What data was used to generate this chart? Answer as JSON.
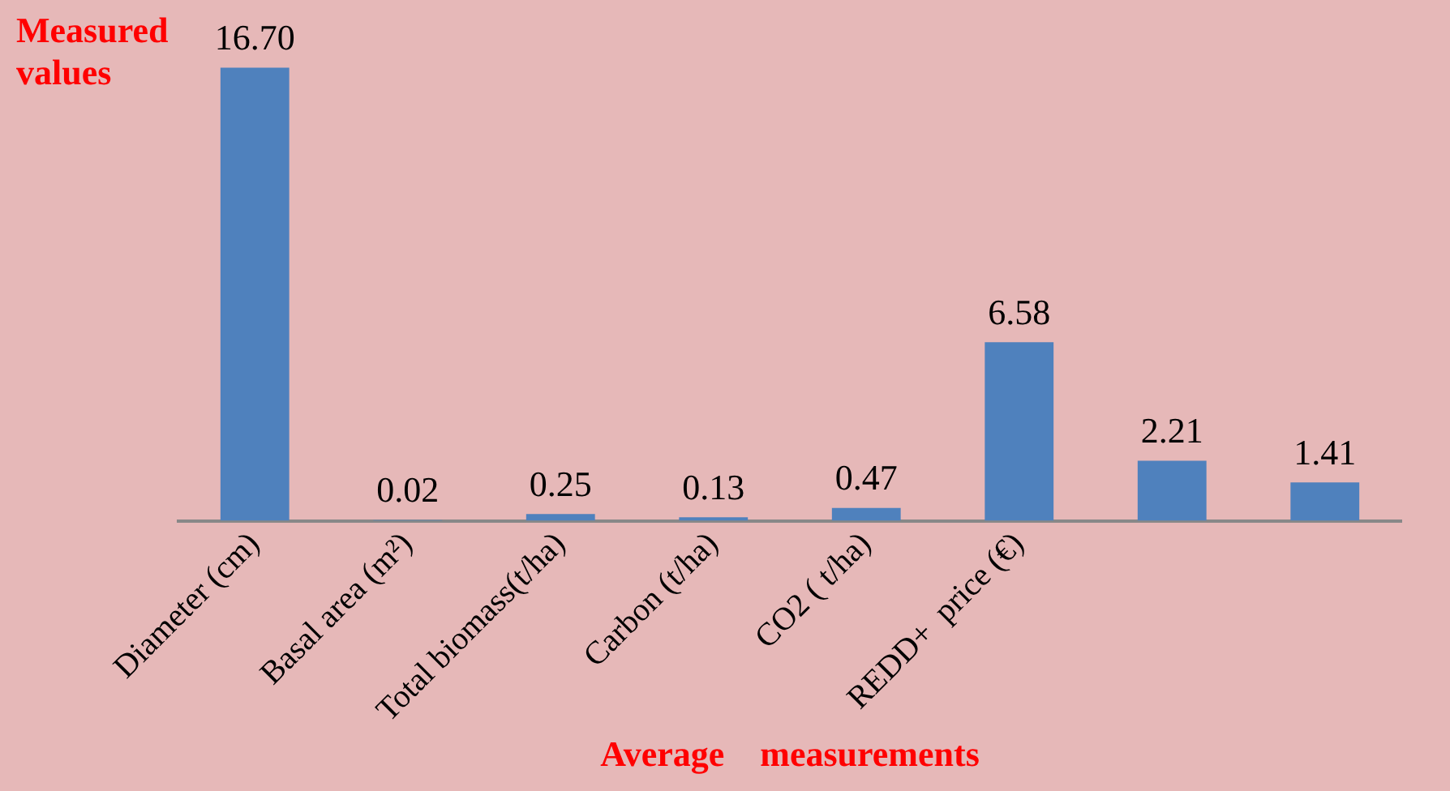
{
  "chart_data": {
    "type": "bar",
    "ylabel": "Measured values",
    "xlabel": "Average    measurements",
    "categories": [
      "Diameter (cm)",
      "Basal area (m²)",
      "Total biomass(t/ha)",
      "Carbon (t/ha)",
      "CO2 ( t/ha)",
      "REDD+  price (€)",
      null,
      null
    ],
    "values": [
      16.7,
      0.02,
      0.25,
      0.13,
      0.47,
      6.58,
      2.21,
      1.41
    ],
    "value_labels": [
      "16.70",
      "0.02",
      "0.25",
      "0.13",
      "0.47",
      "6.58",
      "2.21",
      "1.41"
    ],
    "color": "#4f81bd",
    "grid": false,
    "legend": false,
    "tick_labels": "x"
  }
}
